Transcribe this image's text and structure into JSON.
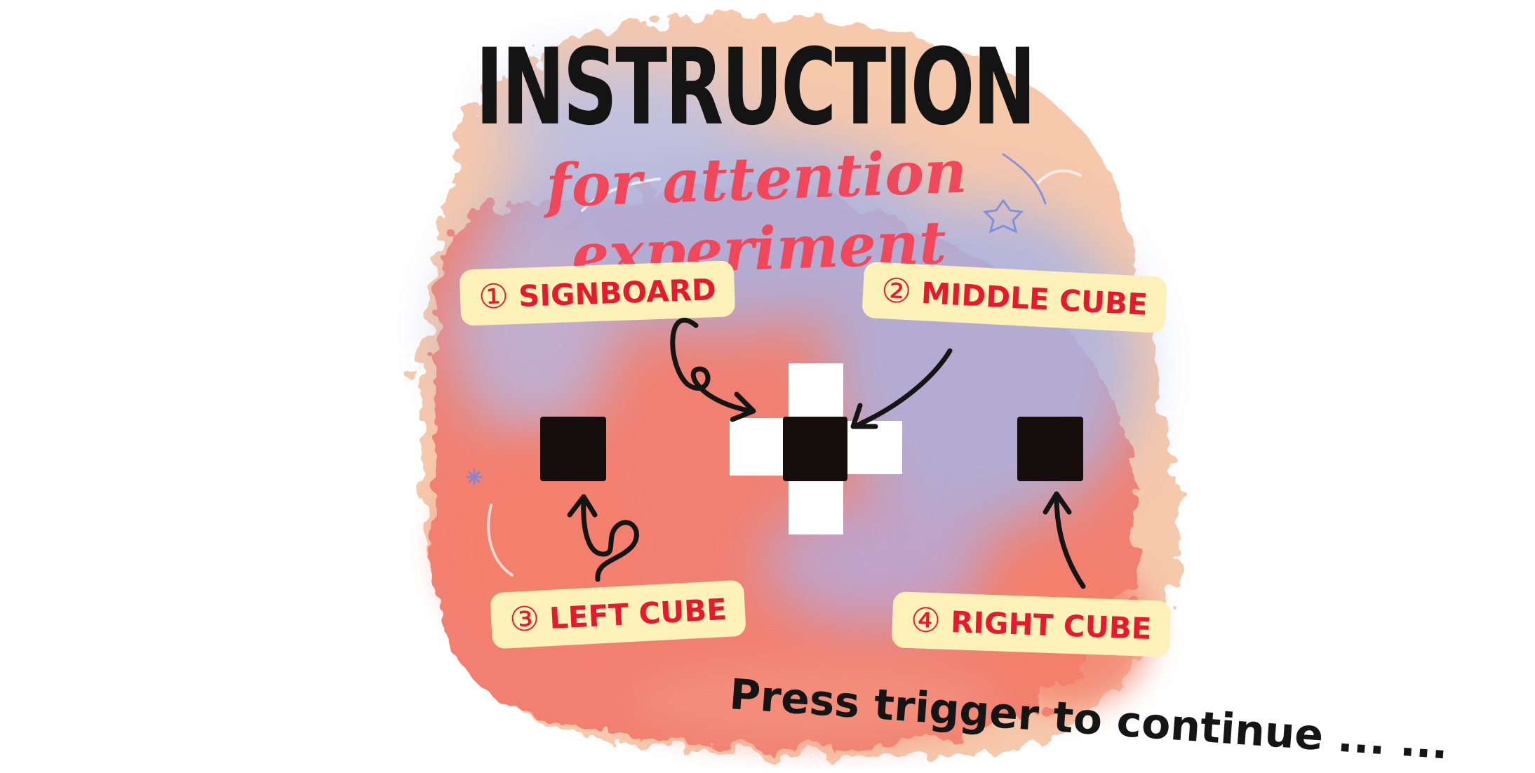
{
  "title": "INSTRUCTION",
  "subtitle": "for attention experiment",
  "labels": {
    "signboard": {
      "number": "①",
      "text": "SIGNBOARD"
    },
    "middle_cube": {
      "number": "②",
      "text": "MIDDLE CUBE"
    },
    "left_cube": {
      "number": "③",
      "text": "LEFT CUBE"
    },
    "right_cube": {
      "number": "④",
      "text": "RIGHT CUBE"
    }
  },
  "prompt": "Press trigger to continue ... ...",
  "colors": {
    "title": "#141414",
    "subtitle": "#f0485a",
    "label_text": "#e8192c",
    "label_bg": "#fcf1b9",
    "cube": "#150e0c",
    "watercolor_red": "#f27a6a",
    "watercolor_blue": "#a9b3e3",
    "watercolor_peach": "#f6c6a8"
  }
}
